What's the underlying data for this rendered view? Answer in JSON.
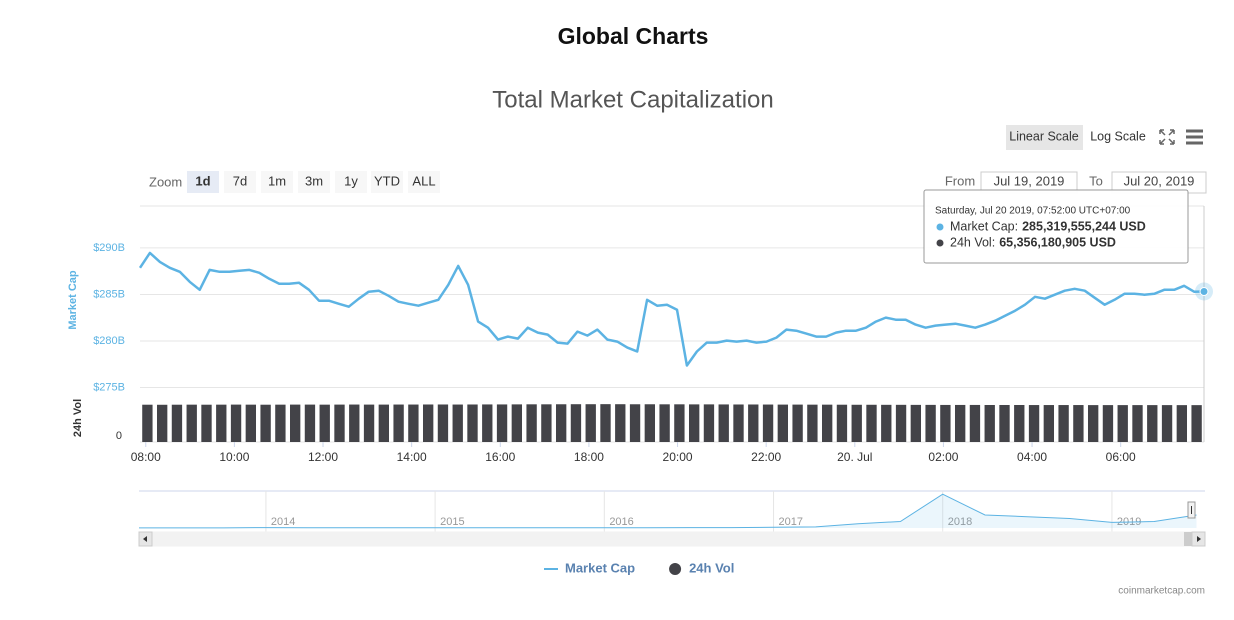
{
  "page_title": "Global Charts",
  "chart_data": {
    "type": "line",
    "title": "Total Market Capitalization",
    "scale_buttons": [
      "Linear Scale",
      "Log Scale"
    ],
    "log_scale": false,
    "zoom": {
      "label": "Zoom",
      "buttons": [
        "1d",
        "7d",
        "1m",
        "3m",
        "1y",
        "YTD",
        "ALL"
      ],
      "selected": 0
    },
    "range": {
      "from_label": "From",
      "from": "Jul 19, 2019",
      "to_label": "To",
      "to": "Jul 20, 2019"
    },
    "ylabel": "Market Cap",
    "ylim": [
      274.2,
      294.5
    ],
    "yticks": [
      {
        "value": 275,
        "label": "$275B"
      },
      {
        "value": 280,
        "label": "$280B"
      },
      {
        "value": 285,
        "label": "$285B"
      },
      {
        "value": 290,
        "label": "$290B"
      }
    ],
    "xlim": [
      7.87,
      31.88
    ],
    "xticks": [
      {
        "value": 8,
        "label": "08:00"
      },
      {
        "value": 10,
        "label": "10:00"
      },
      {
        "value": 12,
        "label": "12:00"
      },
      {
        "value": 14,
        "label": "14:00"
      },
      {
        "value": 16,
        "label": "16:00"
      },
      {
        "value": 18,
        "label": "18:00"
      },
      {
        "value": 20,
        "label": "20:00"
      },
      {
        "value": 22,
        "label": "22:00"
      },
      {
        "value": 24,
        "label": "20. Jul"
      },
      {
        "value": 26,
        "label": "02:00"
      },
      {
        "value": 28,
        "label": "04:00"
      },
      {
        "value": 30,
        "label": "06:00"
      }
    ],
    "grid": true,
    "series": [
      {
        "name": "Market Cap",
        "color": "#5cb3e3",
        "values": [
          287.86,
          289.46,
          288.5,
          287.86,
          287.43,
          286.36,
          285.5,
          287.64,
          287.43,
          287.43,
          287.54,
          287.64,
          287.32,
          286.68,
          286.15,
          286.15,
          286.25,
          285.5,
          284.33,
          284.33,
          284.0,
          283.68,
          284.54,
          285.29,
          285.4,
          284.86,
          284.22,
          284.0,
          283.79,
          284.11,
          284.43,
          286.04,
          288.07,
          286.04,
          282.08,
          281.43,
          280.15,
          280.47,
          280.26,
          281.43,
          280.9,
          280.69,
          279.83,
          279.72,
          281.01,
          280.58,
          281.22,
          280.15,
          279.94,
          279.29,
          278.87,
          284.43,
          283.79,
          283.9,
          283.36,
          277.37,
          278.87,
          279.83,
          279.83,
          280.04,
          279.94,
          280.04,
          279.83,
          279.94,
          280.36,
          281.22,
          281.11,
          280.79,
          280.47,
          280.47,
          280.9,
          281.11,
          281.11,
          281.43,
          282.08,
          282.51,
          282.29,
          282.29,
          281.76,
          281.43,
          281.65,
          281.76,
          281.86,
          281.65,
          281.43,
          281.76,
          282.18,
          282.72,
          283.25,
          283.9,
          284.75,
          284.54,
          284.97,
          285.4,
          285.61,
          285.4,
          284.65,
          283.9,
          284.43,
          285.07,
          285.07,
          284.97,
          285.07,
          285.5,
          285.5,
          285.93,
          285.29,
          285.32
        ]
      },
      {
        "name": "24h Vol",
        "color": "#434348",
        "type": "column",
        "ylabel": "24h Vol",
        "ylim": [
          0,
          78
        ],
        "yticks": [
          0
        ],
        "values": [
          66.1,
          66.0,
          66.1,
          66.2,
          66.1,
          66.2,
          66.3,
          66.2,
          66.1,
          66.2,
          66.3,
          66.3,
          66.2,
          66.3,
          66.4,
          66.3,
          66.3,
          66.4,
          66.4,
          66.5,
          66.5,
          66.4,
          66.5,
          66.6,
          66.6,
          66.7,
          66.8,
          66.8,
          66.9,
          67.0,
          67.0,
          67.1,
          67.0,
          66.9,
          66.9,
          66.8,
          66.8,
          66.7,
          66.7,
          66.6,
          66.5,
          66.5,
          66.4,
          66.3,
          66.3,
          66.2,
          66.2,
          66.1,
          66.0,
          66.0,
          65.9,
          65.9,
          65.8,
          65.8,
          65.7,
          65.7,
          65.7,
          65.6,
          65.6,
          65.6,
          65.5,
          65.5,
          65.5,
          65.5,
          65.4,
          65.4,
          65.4,
          65.4,
          65.4,
          65.4,
          65.36,
          65.36
        ]
      }
    ],
    "tooltip": {
      "title": "Saturday, Jul 20 2019, 07:52:00 UTC+07:00",
      "items": [
        {
          "label": "Market Cap:",
          "value": "285,319,555,244 USD"
        },
        {
          "label": "24h Vol:",
          "value": "65,356,180,905 USD"
        }
      ]
    },
    "navigator": {
      "x": [
        2013.25,
        2013.5,
        2013.75,
        2014,
        2014.25,
        2014.5,
        2014.75,
        2015,
        2015.25,
        2015.5,
        2015.75,
        2016,
        2016.25,
        2016.5,
        2016.75,
        2017,
        2017.25,
        2017.5,
        2017.75,
        2018,
        2018.25,
        2018.5,
        2018.75,
        2019,
        2019.25,
        2019.5
      ],
      "values": [
        1.5,
        1.2,
        2,
        10,
        6,
        8,
        6,
        4,
        3.5,
        3.5,
        3.5,
        6,
        7,
        10,
        10,
        17,
        25,
        100,
        150,
        780,
        300,
        260,
        220,
        130,
        150,
        300
      ],
      "xlim": [
        2013.25,
        2019.55
      ],
      "ylim": [
        0,
        830
      ],
      "xticks": [
        2014,
        2015,
        2016,
        2017,
        2018,
        2019
      ]
    },
    "credit": "coinmarketcap.com"
  }
}
